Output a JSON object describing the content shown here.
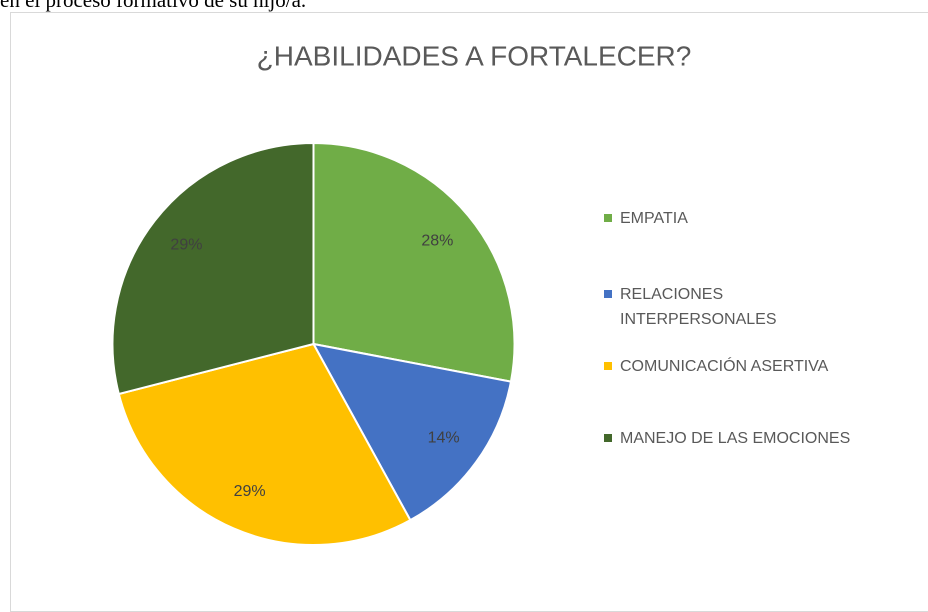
{
  "caption": "en el proceso formativo de su hijo/a.",
  "chart_data": {
    "type": "pie",
    "title": "¿HABILIDADES A FORTALECER?",
    "categories": [
      "EMPATIA",
      "RELACIONES INTERPERSONALES",
      "COMUNICACIÓN ASERTIVA",
      "MANEJO DE LAS EMOCIONES"
    ],
    "values": [
      28,
      14,
      29,
      29
    ],
    "value_labels": [
      "28%",
      "14%",
      "29%",
      "29%"
    ],
    "colors": [
      "#70ad47",
      "#4472c4",
      "#ffc000",
      "#43682b"
    ],
    "legend": "right"
  }
}
